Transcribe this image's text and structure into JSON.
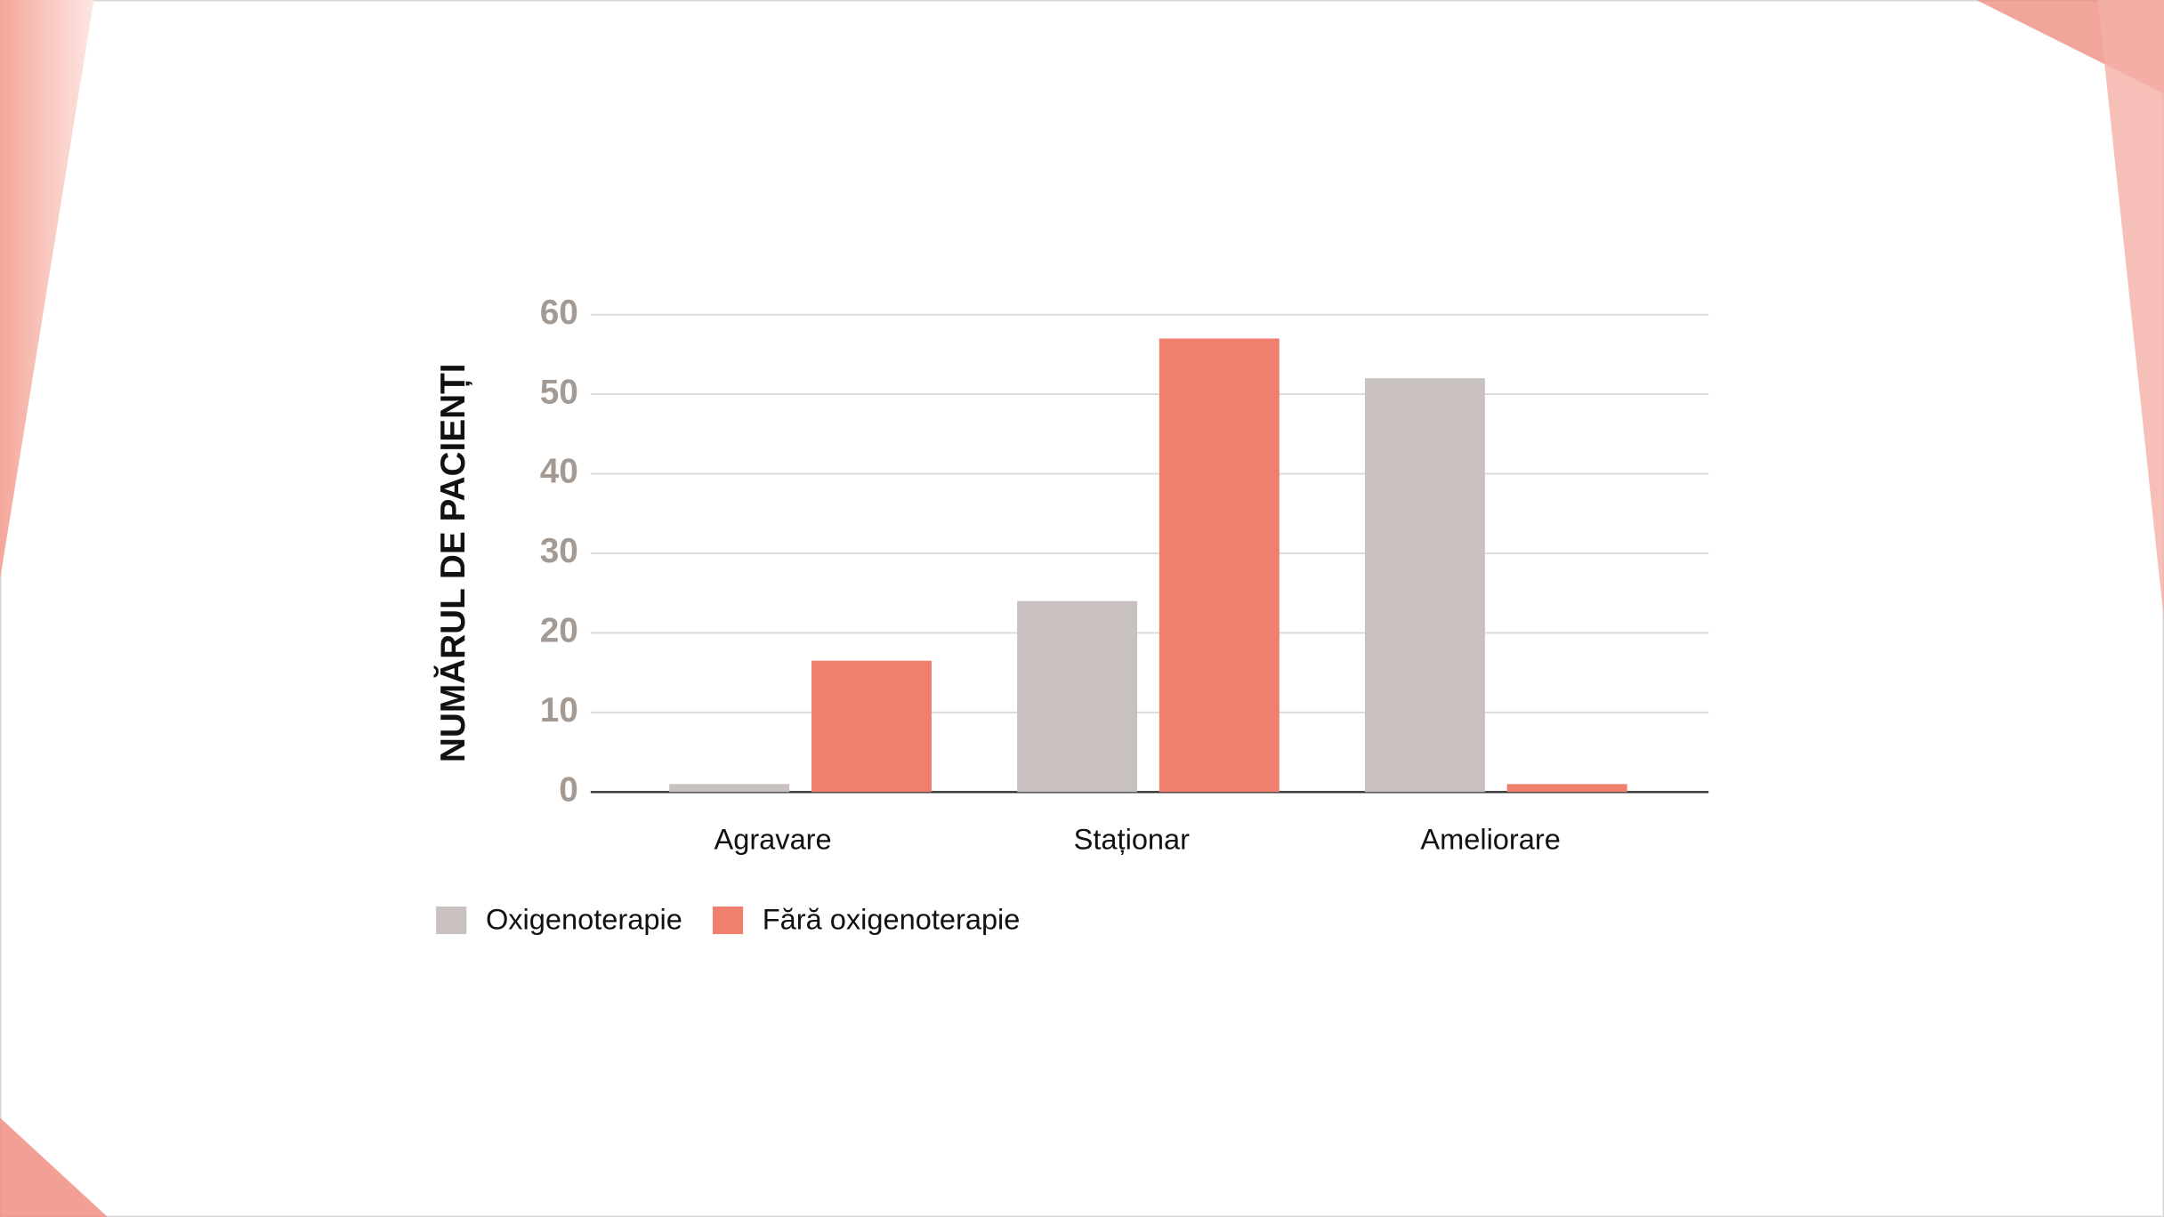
{
  "chart_data": {
    "type": "bar",
    "y_label": "NUMĂRUL DE PACIENȚI",
    "categories": [
      "Agravare",
      "Staționar",
      "Ameliorare"
    ],
    "series": [
      {
        "name": "Oxigenoterapie",
        "color": "#c8c1bf",
        "values": [
          1,
          24,
          52
        ]
      },
      {
        "name": "Fără oxigenoterapie",
        "color": "#f07f6e",
        "values": [
          16.5,
          57,
          1
        ]
      }
    ],
    "ylim": [
      0,
      60
    ],
    "yticks": [
      0,
      10,
      20,
      30,
      40,
      50,
      60
    ],
    "grid": true,
    "legend": "bottom"
  }
}
